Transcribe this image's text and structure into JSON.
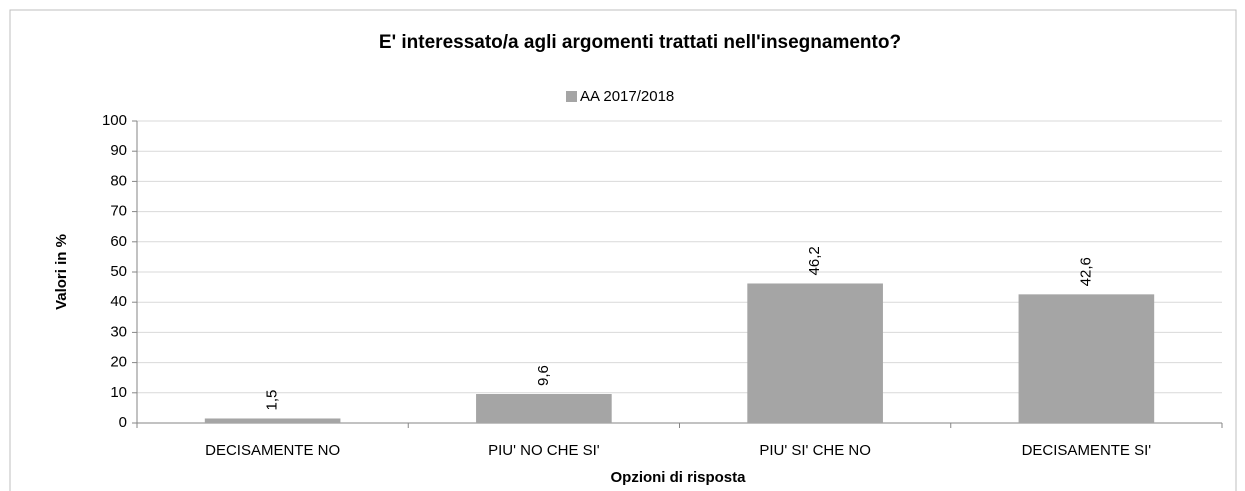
{
  "chart_data": {
    "type": "bar",
    "title": "E' interessato/a agli argomenti trattati nell'insegnamento?",
    "x_label": "Opzioni di risposta",
    "y_label": "Valori in %",
    "categories": [
      "DECISAMENTE NO",
      "PIU' NO CHE SI'",
      "PIU' SI' CHE NO",
      "DECISAMENTE SI'"
    ],
    "series": [
      {
        "name": "AA 2017/2018",
        "color": "#a5a5a5",
        "values": [
          1.5,
          9.6,
          46.2,
          42.6
        ],
        "value_labels": [
          "1,5",
          "9,6",
          "46,2",
          "42,6"
        ]
      }
    ],
    "ylim": [
      0,
      100
    ],
    "yticks": [
      0,
      10,
      20,
      30,
      40,
      50,
      60,
      70,
      80,
      90,
      100
    ],
    "grid": true,
    "legend": "top"
  }
}
